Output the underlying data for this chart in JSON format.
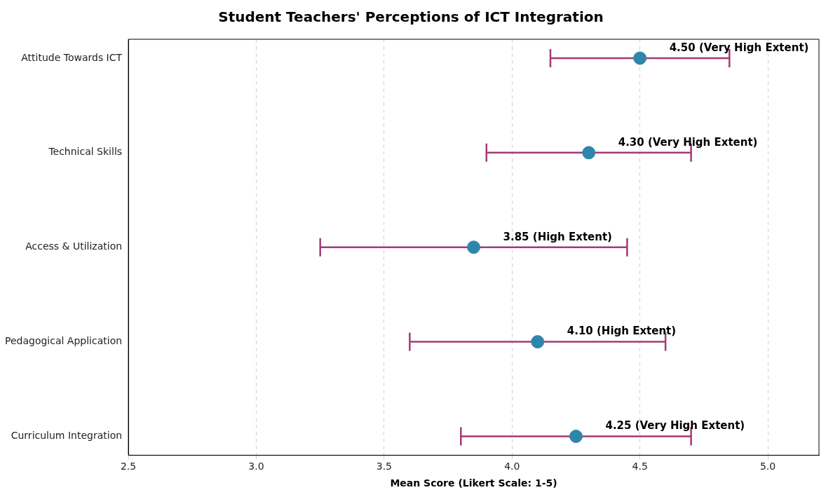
{
  "chart_data": {
    "type": "scatter",
    "orientation": "horizontal",
    "title": "Student Teachers' Perceptions of ICT Integration",
    "xlabel": "Mean Score (Likert Scale: 1-5)",
    "categories": [
      "Attitude Towards ICT",
      "Technical Skills",
      "Access & Utilization",
      "Pedagogical Application",
      "Curriculum Integration"
    ],
    "series": [
      {
        "color": "#2e86ab",
        "values": [
          4.5,
          4.3,
          3.85,
          4.1,
          4.25
        ],
        "errors": [
          [
            4.15,
            4.85
          ],
          [
            3.9,
            4.7
          ],
          [
            3.25,
            4.45
          ],
          [
            3.6,
            4.6
          ],
          [
            3.8,
            4.7
          ]
        ],
        "value_labels": [
          "4.50 (Very High Extent)",
          "4.30 (Very High Extent)",
          "3.85 (High Extent)",
          "4.10 (High Extent)",
          "4.25 (Very High Extent)"
        ]
      }
    ],
    "xlim": [
      2.5,
      5.2
    ],
    "xticks": [
      {
        "value": 2.5,
        "label": "2.5"
      },
      {
        "value": 3,
        "label": "3.0"
      },
      {
        "value": 3.5,
        "label": "3.5"
      },
      {
        "value": 4,
        "label": "4.0"
      },
      {
        "value": 4.5,
        "label": "4.5"
      },
      {
        "value": 5,
        "label": "5.0"
      }
    ],
    "grid": "x",
    "legend": false,
    "marker": "circle"
  }
}
